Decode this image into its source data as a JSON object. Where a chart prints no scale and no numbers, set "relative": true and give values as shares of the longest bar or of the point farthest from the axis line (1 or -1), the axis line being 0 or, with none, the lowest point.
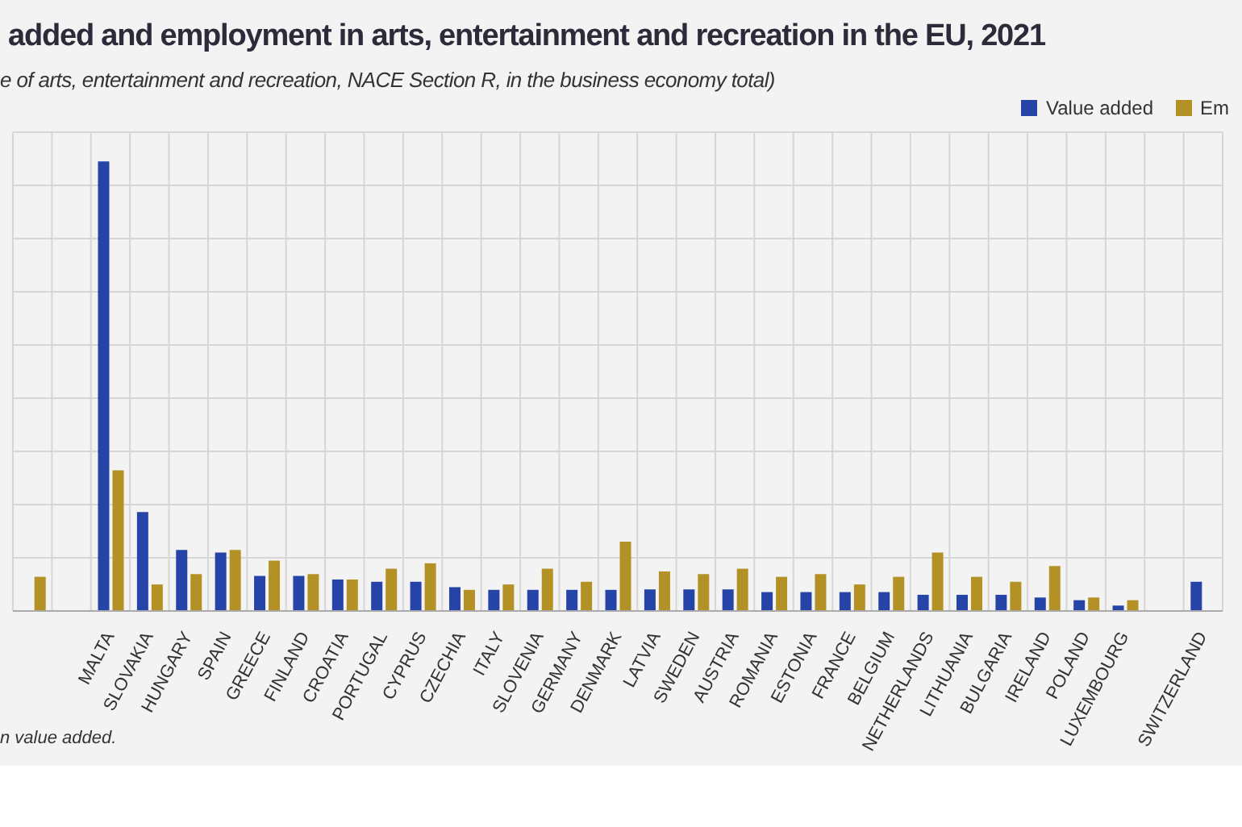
{
  "chart_data": {
    "type": "bar",
    "title": "added and employment in arts, entertainment and recreation in the EU, 2021",
    "subtitle": "e of arts, entertainment and recreation, NACE Section R, in the business economy total)",
    "annotations": [
      "n value added."
    ],
    "relative": true,
    "grid": true,
    "legend": "top right",
    "categories": [
      null,
      null,
      "MALTA",
      "SLOVAKIA",
      "HUNGARY",
      "SPAIN",
      "GREECE",
      "FINLAND",
      "CROATIA",
      "PORTUGAL",
      "CYPRUS",
      "CZECHIA",
      "ITALY",
      "SLOVENIA",
      "GERMANY",
      "DENMARK",
      "LATVIA",
      "SWEDEN",
      "AUSTRIA",
      "ROMANIA",
      "ESTONIA",
      "FRANCE",
      "BELGIUM",
      "NETHERLANDS",
      "LITHUANIA",
      "BULGARIA",
      "IRELAND",
      "POLAND",
      "LUXEMBOURG",
      null,
      "SWITZERLAND"
    ],
    "series": [
      {
        "name": "Value added",
        "color": "#2644a8",
        "values": [
          null,
          null,
          1,
          0.22,
          0.136,
          0.13,
          0.078,
          0.078,
          0.07,
          0.065,
          0.065,
          0.053,
          0.047,
          0.047,
          0.047,
          0.047,
          0.048,
          0.048,
          0.048,
          0.042,
          0.042,
          0.042,
          0.042,
          0.036,
          0.036,
          0.036,
          0.03,
          0.024,
          0.012,
          null,
          0.065
        ]
      },
      {
        "name": "Em",
        "color": "#b39124",
        "values": [
          0.076,
          null,
          0.313,
          0.059,
          0.082,
          0.136,
          0.112,
          0.082,
          0.07,
          0.094,
          0.106,
          0.047,
          0.059,
          0.094,
          0.065,
          0.154,
          0.088,
          0.082,
          0.094,
          0.076,
          0.082,
          0.059,
          0.076,
          0.13,
          0.076,
          0.065,
          0.1,
          0.03,
          0.024,
          null,
          null
        ]
      }
    ]
  }
}
